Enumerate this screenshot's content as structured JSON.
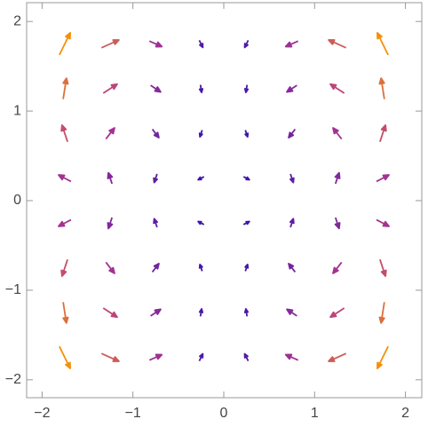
{
  "chart_data": {
    "type": "vector",
    "x": [
      -1.75,
      -1.25,
      -0.75,
      -0.25,
      0.25,
      0.75,
      1.25,
      1.75,
      -1.75,
      -1.25,
      -0.75,
      -0.25,
      0.25,
      0.75,
      1.25,
      1.75,
      -1.75,
      -1.25,
      -0.75,
      -0.25,
      0.25,
      0.75,
      1.25,
      1.75,
      -1.75,
      -1.25,
      -0.75,
      -0.25,
      0.25,
      0.75,
      1.25,
      1.75,
      -1.75,
      -1.25,
      -0.75,
      -0.25,
      0.25,
      0.75,
      1.25,
      1.75,
      -1.75,
      -1.25,
      -0.75,
      -0.25,
      0.25,
      0.75,
      1.25,
      1.75,
      -1.75,
      -1.25,
      -0.75,
      -0.25,
      0.25,
      0.75,
      1.25,
      1.75,
      -1.75,
      -1.25,
      -0.75,
      -0.25,
      0.25,
      0.75,
      1.25,
      1.75
    ],
    "y": [
      1.75,
      1.75,
      1.75,
      1.75,
      1.75,
      1.75,
      1.75,
      1.75,
      1.25,
      1.25,
      1.25,
      1.25,
      1.25,
      1.25,
      1.25,
      1.25,
      0.75,
      0.75,
      0.75,
      0.75,
      0.75,
      0.75,
      0.75,
      0.75,
      0.25,
      0.25,
      0.25,
      0.25,
      0.25,
      0.25,
      0.25,
      0.25,
      -0.25,
      -0.25,
      -0.25,
      -0.25,
      -0.25,
      -0.25,
      -0.25,
      -0.25,
      -0.75,
      -0.75,
      -0.75,
      -0.75,
      -0.75,
      -0.75,
      -0.75,
      -0.75,
      -1.25,
      -1.25,
      -1.25,
      -1.25,
      -1.25,
      -1.25,
      -1.25,
      -1.25,
      -1.75,
      -1.75,
      -1.75,
      -1.75,
      -1.75,
      -1.75,
      -1.75,
      -1.75
    ],
    "angle": [
      63.8,
      24.1,
      -24.1,
      -63.8,
      -116.2,
      -155.9,
      155.9,
      116.2,
      81.1,
      33.1,
      -33.1,
      -81.1,
      -98.9,
      -146.9,
      146.9,
      98.9,
      108.4,
      52.1,
      -52.1,
      -108.4,
      -71.6,
      -127.9,
      127.9,
      71.6,
      152.1,
      108.4,
      -108.4,
      -152.1,
      -27.9,
      -71.6,
      71.6,
      27.9,
      -152.1,
      -108.4,
      108.4,
      152.1,
      27.9,
      71.6,
      -71.6,
      -27.9,
      -108.4,
      -52.1,
      52.1,
      108.4,
      71.6,
      127.9,
      -127.9,
      -71.6,
      -81.1,
      -33.1,
      33.1,
      81.1,
      98.9,
      146.9,
      -146.9,
      -98.9,
      -63.8,
      -24.1,
      24.1,
      63.8,
      116.2,
      155.9,
      -155.9,
      -116.2
    ],
    "magnitude": [
      2.41,
      1.72,
      1.03,
      0.34,
      0.34,
      1.03,
      1.72,
      2.41,
      1.97,
      1.41,
      0.84,
      0.28,
      0.28,
      0.84,
      1.41,
      1.97,
      1.53,
      1.09,
      0.66,
      0.22,
      0.22,
      0.66,
      1.09,
      1.53,
      1.09,
      0.78,
      0.47,
      0.16,
      0.16,
      0.47,
      0.78,
      1.09,
      1.09,
      0.78,
      0.47,
      0.16,
      0.16,
      0.47,
      0.78,
      1.09,
      1.53,
      1.09,
      0.66,
      0.22,
      0.22,
      0.66,
      1.09,
      1.53,
      1.97,
      1.41,
      0.84,
      0.28,
      0.28,
      0.84,
      1.41,
      1.97,
      2.41,
      1.72,
      1.03,
      0.34,
      0.34,
      1.03,
      1.72,
      2.41
    ],
    "colors": [
      "#2a10b0",
      "#b0368e",
      "#f5900a"
    ],
    "xlim": [
      -2.17,
      2.18
    ],
    "ylim": [
      -2.2,
      2.21
    ],
    "xticks": [
      {
        "value": -2,
        "label": "−2"
      },
      {
        "value": -1,
        "label": "−1"
      },
      0,
      1,
      2
    ],
    "yticks": [
      {
        "value": -2,
        "label": "−2"
      },
      {
        "value": -1,
        "label": "−1"
      },
      0,
      1,
      2
    ]
  }
}
